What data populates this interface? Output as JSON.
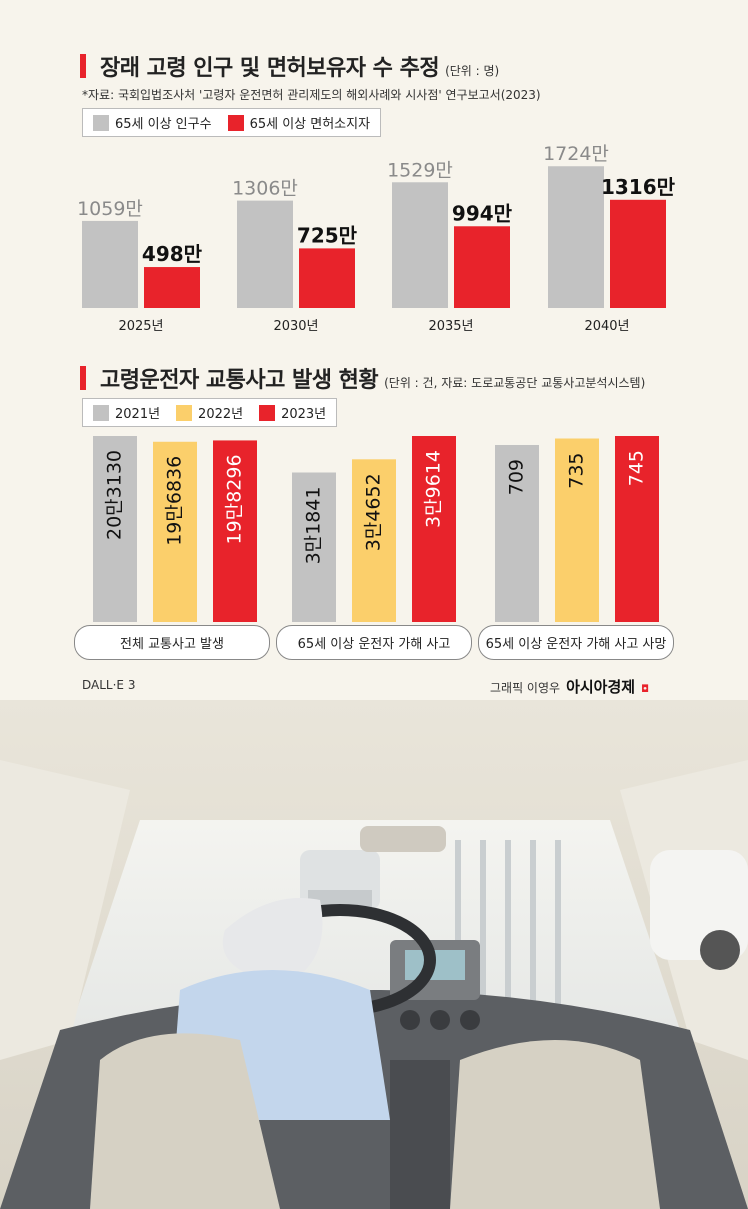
{
  "section1": {
    "title": "장래 고령 인구 및 면허보유자 수 추정",
    "unit": "(단위 : 명)",
    "source": "*자료: 국회입법조사처 '고령자 운전면허 관리제도의 해외사례와 시사점' 연구보고서(2023)"
  },
  "section2": {
    "title": "고령운전자 교통사고 발생 현황",
    "unit": "(단위 : 건, 자료: 도로교통공단 교통사고분석시스템)"
  },
  "footer": {
    "left": "DALL·E 3",
    "credit": "그래픽 이영우",
    "brand": "아시아경제",
    "brand_mark": "◘"
  },
  "colors": {
    "gray": "#c2c2c2",
    "red": "#e8232b",
    "yellow": "#fbcf6b",
    "background": "#f7f4ec"
  },
  "chart_data": [
    {
      "type": "bar",
      "title": "장래 고령 인구 및 면허보유자 수 추정",
      "categories": [
        "2025년",
        "2030년",
        "2035년",
        "2040년"
      ],
      "series": [
        {
          "name": "65세 이상 인구수",
          "values": [
            1059,
            1306,
            1529,
            1724
          ],
          "labels": [
            "1059만",
            "1306만",
            "1529만",
            "1724만"
          ],
          "color": "#c2c2c2"
        },
        {
          "name": "65세 이상 면허소지자",
          "values": [
            498,
            725,
            994,
            1316
          ],
          "labels": [
            "498만",
            "725만",
            "994만",
            "1316만"
          ],
          "color": "#e8232b"
        }
      ],
      "ylim": [
        0,
        1800
      ],
      "legend": "top-left"
    },
    {
      "type": "bar",
      "title": "고령운전자 교통사고 발생 현황",
      "groups": [
        {
          "category": "전체 교통사고 발생",
          "values": [
            203130,
            196836,
            198296
          ],
          "labels": [
            "20만3130",
            "19만6836",
            "19만8296"
          ],
          "ylim": [
            0,
            203130
          ]
        },
        {
          "category": "65세 이상 운전자 가해 사고",
          "values": [
            31841,
            34652,
            39614
          ],
          "labels": [
            "3만1841",
            "3만4652",
            "3만9614"
          ],
          "ylim": [
            0,
            39614
          ]
        },
        {
          "category": "65세 이상 운전자 가해 사고 사망",
          "values": [
            709,
            735,
            745
          ],
          "labels": [
            "709",
            "735",
            "745"
          ],
          "ylim": [
            0,
            745
          ]
        }
      ],
      "series": [
        {
          "name": "2021년",
          "color": "#c2c2c2"
        },
        {
          "name": "2022년",
          "color": "#fbcf6b"
        },
        {
          "name": "2023년",
          "color": "#e8232b"
        }
      ],
      "legend": "top-left"
    }
  ]
}
